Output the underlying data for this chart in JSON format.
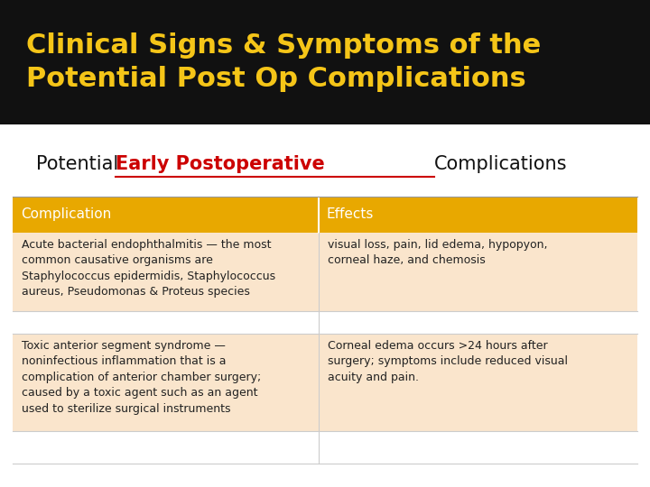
{
  "title_line1": "Clinical Signs & Symptoms of the",
  "title_line2": "Potential Post Op Complications",
  "title_color": "#F5C518",
  "title_bg": "#111111",
  "subtitle_prefix": "Potential ",
  "subtitle_highlight": "Early Postoperative ",
  "subtitle_suffix": "Complications",
  "subtitle_color": "#111111",
  "subtitle_highlight_color": "#CC0000",
  "header_bg": "#E8A800",
  "header_text_color": "#FFFFFF",
  "row_bg": "#FAE5CC",
  "row_bg_alt": "#FFFFFF",
  "col1_header": "Complication",
  "col2_header": "Effects",
  "rows": [
    {
      "col1": "Acute bacterial endophthalmitis — the most\ncommon causative organisms are\nStaphylococcus epidermidis, Staphylococcus\naureus, Pseudomonas & Proteus species",
      "col2": "visual loss, pain, lid edema, hypopyon,\ncorneal haze, and chemosis"
    },
    {
      "col1": "",
      "col2": ""
    },
    {
      "col1": "Toxic anterior segment syndrome —\nnoninfectious inflammation that is a\ncomplication of anterior chamber surgery;\ncaused by a toxic agent such as an agent\nused to sterilize surgical instruments",
      "col2": "Corneal edema occurs >24 hours after\nsurgery; symptoms include reduced visual\nacuity and pain."
    },
    {
      "col1": "",
      "col2": ""
    }
  ],
  "col_split": 0.49,
  "figsize": [
    7.2,
    5.4
  ],
  "dpi": 100
}
